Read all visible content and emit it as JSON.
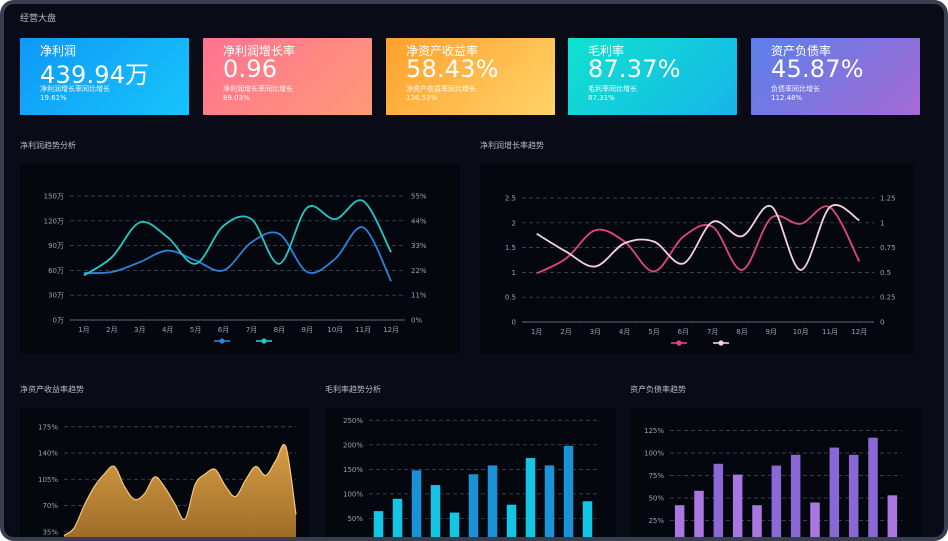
{
  "page_title": "经营大盘",
  "kpis": [
    {
      "label": "净利润",
      "value": "439.94万",
      "sub1": "净利润增长率同比增长",
      "sub2": "19.61%",
      "color_from": "#1aa3ff",
      "color_to": "#16c4fb"
    },
    {
      "label": "净利润增长率",
      "value": "0.96",
      "sub1": "净利润增长率同比增长",
      "sub2": "89.03%",
      "color_from": "#ff6f8c",
      "color_to": "#ff9a7a"
    },
    {
      "label": "净资产收益率",
      "value": "58.43%",
      "sub1": "净资产收益率同比增长",
      "sub2": "136.53%",
      "color_from": "#ffa42e",
      "color_to": "#ffd062"
    },
    {
      "label": "毛利率",
      "value": "87.37%",
      "sub1": "毛利率同比增长",
      "sub2": "87.31%",
      "color_from": "#11dfd4",
      "color_to": "#14b7e6"
    },
    {
      "label": "资产负债率",
      "value": "45.87%",
      "sub1": "负债率同比增长",
      "sub2": "112.48%",
      "color_from": "#5b7fe8",
      "color_to": "#a06bd5"
    }
  ],
  "sections": {
    "profit_trend": "净利润趋势分析",
    "growth_trend": "净利润增长率趋势",
    "roe_trend": "净资产收益率趋势",
    "gross_margin": "毛利率趋势分析",
    "debt_ratio": "资产负债率趋势"
  },
  "charts": {
    "profit": {
      "type": "line",
      "categories": [
        "1月",
        "2月",
        "3月",
        "4月",
        "5月",
        "6月",
        "7月",
        "8月",
        "9月",
        "10月",
        "11月",
        "12月"
      ],
      "y_left_ticks": [
        "0万",
        "30万",
        "60万",
        "90万",
        "120万",
        "150万"
      ],
      "y_right_ticks": [
        "0%",
        "11%",
        "22%",
        "33%",
        "44%",
        "55%"
      ],
      "ylim_left": [
        0,
        150
      ],
      "series": [
        {
          "values": [
            57,
            58,
            70,
            84,
            72,
            60,
            94,
            104,
            58,
            74,
            112,
            47
          ],
          "color": "#2f80d8"
        },
        {
          "values": [
            54,
            76,
            118,
            100,
            68,
            114,
            122,
            68,
            136,
            122,
            144,
            82
          ],
          "color": "#24c8c4"
        }
      ]
    },
    "growth": {
      "type": "line",
      "categories": [
        "1月",
        "2月",
        "3月",
        "4月",
        "5月",
        "6月",
        "7月",
        "8月",
        "9月",
        "10月",
        "11月",
        "12月"
      ],
      "y_left_ticks": [
        "0",
        "0.5",
        "1",
        "1.5",
        "2",
        "2.5"
      ],
      "y_right_ticks": [
        "0",
        "0.25",
        "0.5",
        "0.75",
        "1",
        "1.25"
      ],
      "ylim_left": [
        0,
        2.5
      ],
      "series": [
        {
          "values": [
            0.98,
            1.28,
            1.85,
            1.62,
            1.02,
            1.72,
            1.92,
            1.05,
            2.1,
            1.98,
            2.31,
            1.22
          ],
          "color": "#e0487a"
        },
        {
          "values": [
            1.78,
            1.42,
            1.12,
            1.59,
            1.62,
            1.18,
            2.02,
            1.73,
            2.33,
            1.05,
            2.32,
            2.05
          ],
          "color": "#f4d2de"
        }
      ]
    },
    "roe": {
      "type": "area",
      "y_ticks": [
        "35%",
        "70%",
        "105%",
        "140%",
        "175%"
      ],
      "ylim": [
        20,
        200
      ],
      "x": [
        0,
        1,
        2,
        3,
        4,
        5,
        6,
        7,
        8,
        9,
        10,
        11,
        12,
        13,
        14,
        15,
        16,
        17,
        18,
        19,
        20,
        21,
        22,
        23
      ],
      "values": [
        30,
        40,
        70,
        95,
        112,
        122,
        95,
        78,
        86,
        108,
        94,
        72,
        52,
        98,
        112,
        118,
        96,
        82,
        104,
        122,
        110,
        130,
        148,
        58
      ],
      "color": "#d69d45"
    },
    "gross": {
      "type": "bar",
      "y_ticks": [
        "50%",
        "100%",
        "150%",
        "200%",
        "250%"
      ],
      "ylim": [
        0,
        275
      ],
      "values": [
        65,
        90,
        148,
        118,
        62,
        140,
        158,
        78,
        173,
        158,
        198,
        85
      ],
      "colors": [
        "#14c5e5",
        "#14c5e5",
        "#1a92d8",
        "#14c5e5",
        "#14c5e5",
        "#1a92d8",
        "#1a92d8",
        "#14c5e5",
        "#14c5e5",
        "#1a92d8",
        "#1a92d8",
        "#14c5e5"
      ]
    },
    "debt": {
      "type": "bar",
      "y_ticks": [
        "25%",
        "50%",
        "75%",
        "100%",
        "125%"
      ],
      "ylim": [
        0,
        150
      ],
      "values": [
        42,
        58,
        88,
        76,
        42,
        86,
        98,
        45,
        106,
        98,
        117,
        53
      ],
      "colors": [
        "#aa76e0",
        "#aa76e0",
        "#8a69d6",
        "#aa76e0",
        "#aa76e0",
        "#8a69d6",
        "#8a69d6",
        "#aa76e0",
        "#8a69d6",
        "#8a69d6",
        "#8a69d6",
        "#aa76e0"
      ]
    }
  }
}
